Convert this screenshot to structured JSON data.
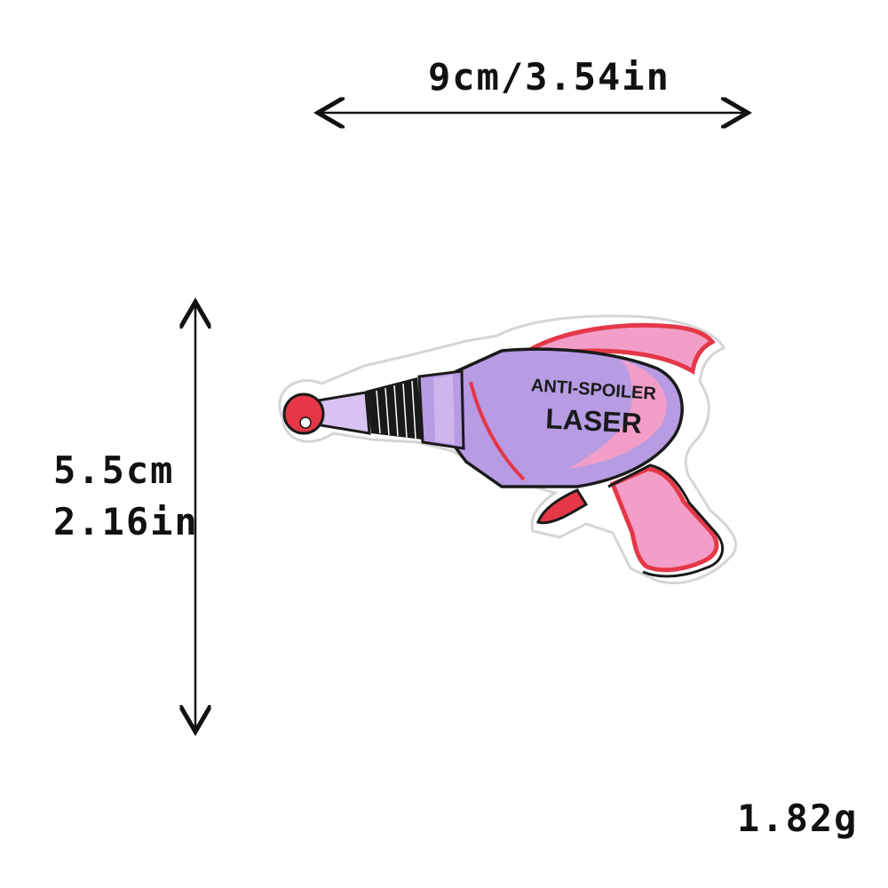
{
  "dimensions": {
    "width_label": "9cm/3.54in",
    "height_cm": "5.5cm",
    "height_in": "2.16in",
    "weight": "1.82g"
  },
  "product": {
    "patch_text_line1": "ANTI-SPOILER",
    "patch_text_line2": "LASER"
  },
  "colors": {
    "lavender": "#b79be3",
    "lavender_light": "#d7c2f1",
    "pink": "#f29ec8",
    "red": "#e53747",
    "outline": "#1a1a1a"
  }
}
